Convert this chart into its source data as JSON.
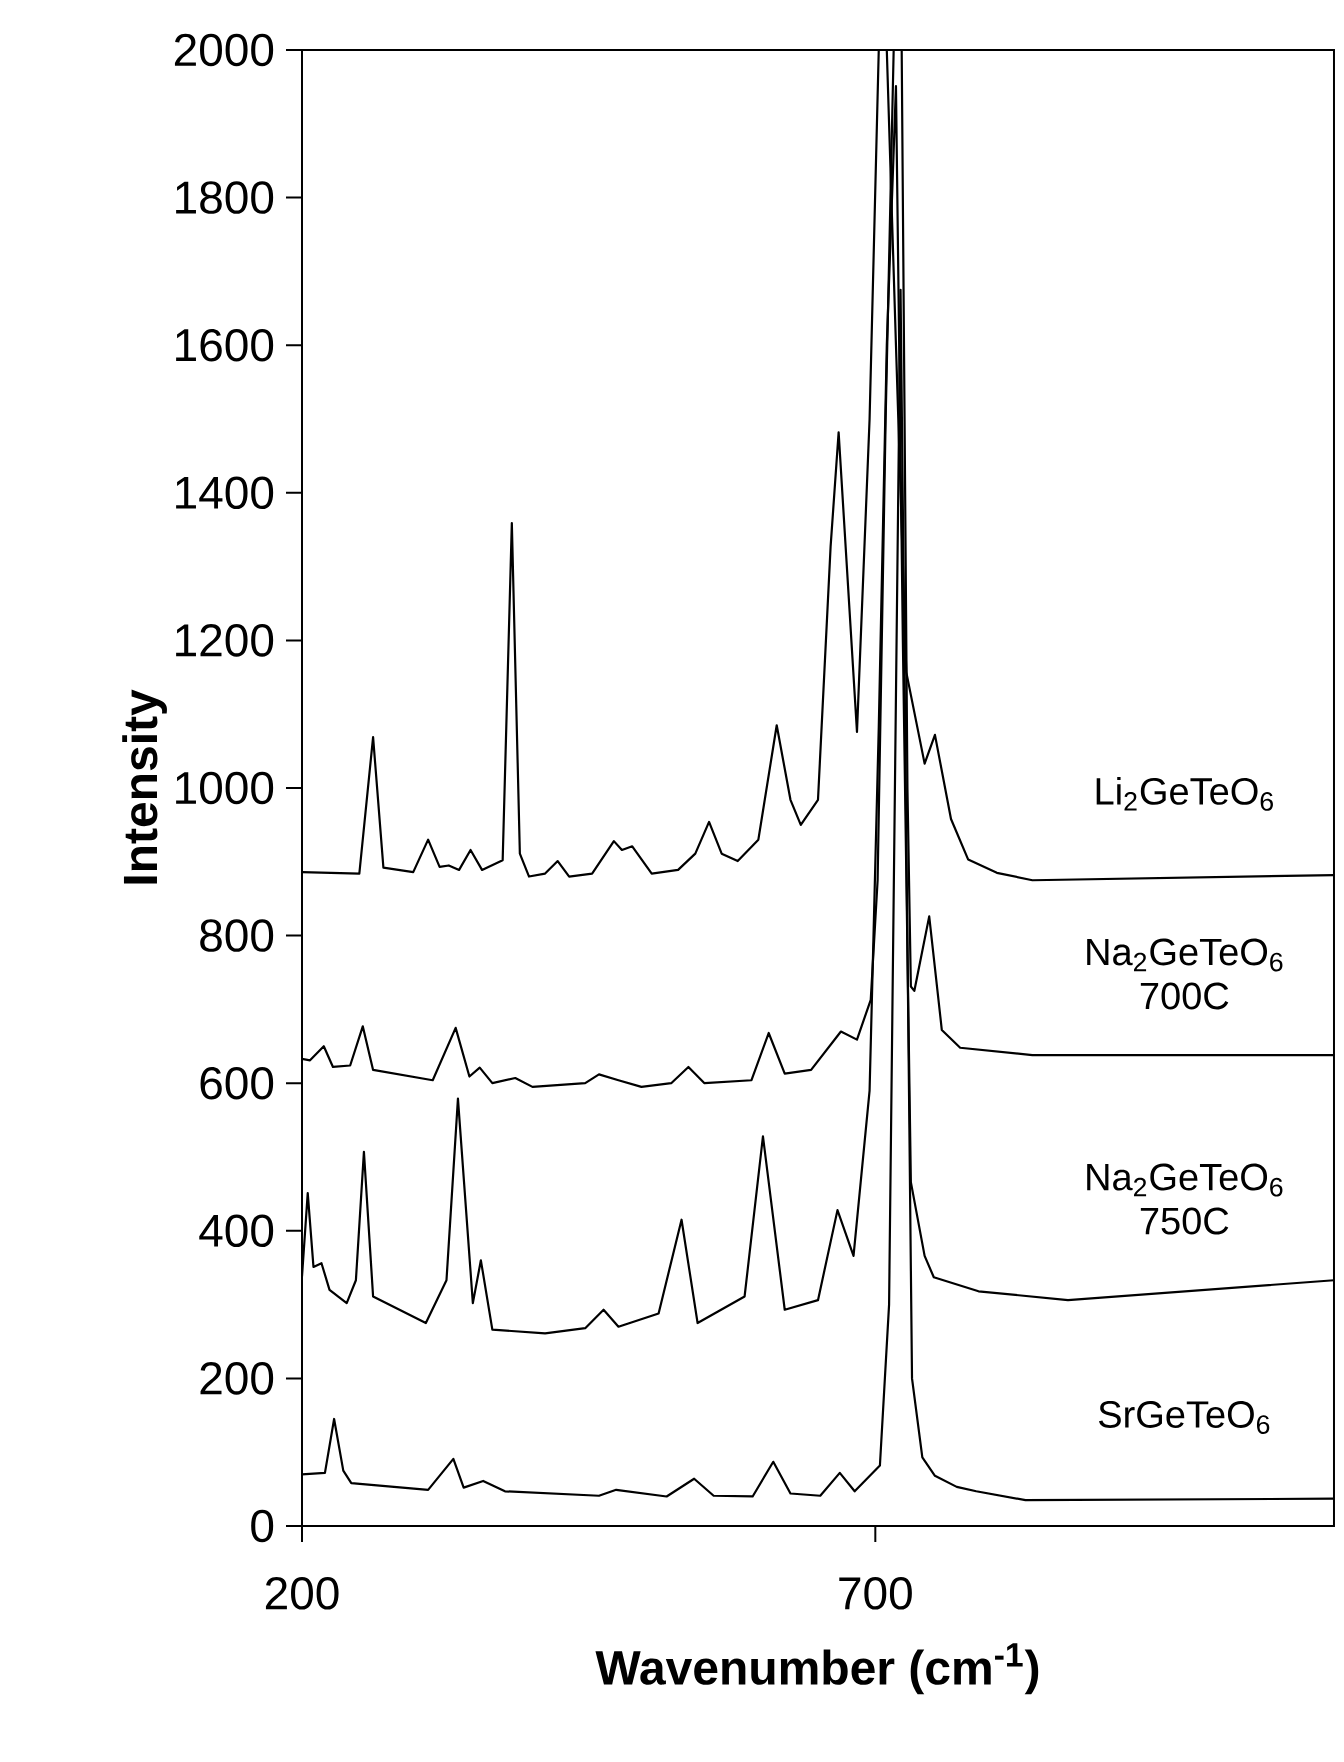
{
  "chart_data": {
    "type": "line",
    "xlabel": "Wavenumber (cm$^{-1}$)",
    "ylabel": "Intensity",
    "xlim": [
      200,
      1100
    ],
    "ylim": [
      0,
      2000
    ],
    "xticks": [
      200,
      700
    ],
    "yticks": [
      0,
      200,
      400,
      600,
      800,
      1000,
      1200,
      1400,
      1600,
      1800,
      2000
    ],
    "series": [
      {
        "name": "Li$_{2}$GeTeO$_{6}$",
        "color": "#000000",
        "x": [
          200,
          250,
          262,
          271,
          297,
          310,
          320,
          328,
          337,
          347,
          357,
          375,
          383,
          390,
          398,
          412,
          423,
          433,
          453,
          472,
          479,
          488,
          505,
          528,
          543,
          555,
          566,
          580,
          598,
          614,
          626,
          635,
          650,
          661,
          668,
          684,
          695,
          703,
          710,
          718,
          727,
          743,
          752,
          766,
          781,
          806,
          837,
          1100
        ],
        "values": [
          886,
          884,
          1069,
          892,
          886,
          930,
          893,
          895,
          889,
          916,
          889,
          902,
          1359,
          911,
          880,
          884,
          901,
          880,
          884,
          928,
          916,
          921,
          884,
          889,
          911,
          954,
          911,
          901,
          930,
          1085,
          984,
          950,
          984,
          1327,
          1482,
          1076,
          1500,
          2000,
          2000,
          1600,
          1157,
          1033,
          1072,
          958,
          903,
          885,
          875,
          882
        ]
      },
      {
        "name": "Na$_{2}$GeTeO$_{6}$ 700C",
        "color": "#000000",
        "x": [
          200,
          207,
          219,
          227,
          242,
          253,
          262,
          314,
          334,
          346,
          355,
          366,
          386,
          401,
          447,
          459,
          476,
          496,
          522,
          537,
          551,
          592,
          607,
          621,
          644,
          670,
          684,
          696,
          702,
          709,
          716,
          723,
          728,
          731,
          734,
          747,
          758,
          774,
          837,
          1100
        ],
        "values": [
          633,
          631,
          650,
          622,
          624,
          677,
          618,
          604,
          675,
          609,
          621,
          600,
          607,
          595,
          600,
          612,
          604,
          595,
          600,
          622,
          600,
          604,
          668,
          613,
          618,
          670,
          659,
          713,
          875,
          1500,
          2000,
          2000,
          1000,
          731,
          725,
          826,
          672,
          648,
          638,
          638
        ]
      },
      {
        "name": "Na$_{2}$GeTeO$_{6}$ 750C",
        "color": "#000000",
        "x": [
          200,
          205,
          210,
          217,
          224,
          239,
          247,
          254,
          262,
          308,
          326,
          336,
          349,
          356,
          366,
          412,
          447,
          463,
          476,
          511,
          531,
          545,
          586,
          602,
          621,
          650,
          667,
          681,
          695,
          703,
          710,
          718,
          724,
          731,
          743,
          751,
          790,
          868,
          1100
        ],
        "values": [
          338,
          451,
          351,
          356,
          320,
          302,
          333,
          507,
          311,
          275,
          333,
          579,
          302,
          360,
          266,
          261,
          268,
          293,
          270,
          288,
          415,
          275,
          311,
          528,
          293,
          306,
          428,
          366,
          590,
          1082,
          1600,
          1951,
          1200,
          466,
          366,
          337,
          318,
          306,
          333
        ]
      },
      {
        "name": "SrGeTeO$_{6}$",
        "color": "#000000",
        "x": [
          200,
          220,
          228,
          236,
          243,
          310,
          332,
          341,
          358,
          377,
          459,
          474,
          518,
          542,
          559,
          593,
          611,
          626,
          652,
          669,
          682,
          704,
          712,
          722,
          732,
          741,
          752,
          771,
          788,
          831,
          1100
        ],
        "values": [
          70,
          72,
          145,
          75,
          58,
          49,
          91,
          52,
          61,
          47,
          41,
          49,
          40,
          64,
          41,
          40,
          87,
          44,
          41,
          72,
          47,
          82,
          300,
          1675,
          200,
          93,
          68,
          53,
          47,
          35,
          37
        ]
      }
    ]
  }
}
